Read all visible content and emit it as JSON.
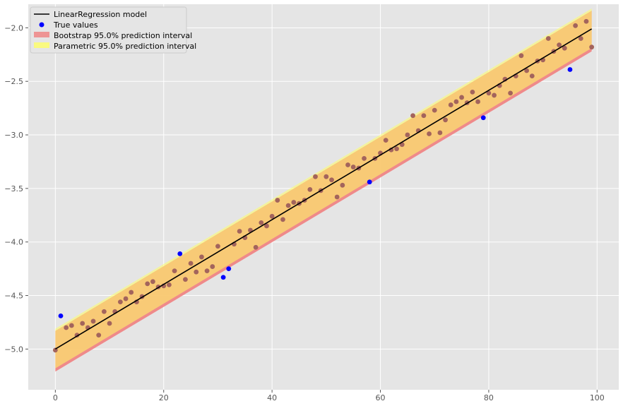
{
  "chart_data": {
    "type": "scatter",
    "style": "ggplot",
    "grid": true,
    "legend_placement": "top-left",
    "xlim": [
      -5,
      104
    ],
    "ylim": [
      -5.38,
      -1.78
    ],
    "xticks": [
      0,
      20,
      40,
      60,
      80,
      100
    ],
    "yticks": [
      -5.0,
      -4.5,
      -4.0,
      -3.5,
      -3.0,
      -2.5,
      -2.0
    ],
    "xtick_labels": [
      "0",
      "20",
      "40",
      "60",
      "80",
      "100"
    ],
    "ytick_labels": [
      "−5.0",
      "−4.5",
      "−4.0",
      "−3.5",
      "−3.0",
      "−2.5",
      "−2.0"
    ],
    "colors": {
      "background": "#e5e5e5",
      "grid": "#ffffff",
      "model_line": "#000000",
      "true_values": "#0000ff",
      "bootstrap_interval": "#f08080",
      "parametric_interval": "#ffff66",
      "overlap": "#f5b84f",
      "overlap_points": "#a3645c"
    },
    "legend": [
      {
        "label": "LinearRegression model",
        "kind": "line",
        "color": "#000000"
      },
      {
        "label": "True values",
        "kind": "marker",
        "color": "#0000ff"
      },
      {
        "label": "Bootstrap 95.0% prediction interval",
        "kind": "patch",
        "color": "#f08080"
      },
      {
        "label": "Parametric 95.0% prediction interval",
        "kind": "patch",
        "color": "#ffff66"
      }
    ],
    "model_line": {
      "x": [
        0,
        99
      ],
      "y": [
        -5.0,
        -2.01
      ]
    },
    "bootstrap_interval": {
      "x": [
        0,
        99
      ],
      "lower": [
        -5.21,
        -2.22
      ],
      "upper": [
        -4.83,
        -1.84
      ]
    },
    "parametric_interval": {
      "x": [
        0,
        99
      ],
      "lower": [
        -5.18,
        -2.19
      ],
      "upper": [
        -4.81,
        -1.82
      ]
    },
    "true_values": {
      "x": [
        0,
        1,
        2,
        3,
        4,
        5,
        6,
        7,
        8,
        9,
        10,
        11,
        12,
        13,
        14,
        15,
        16,
        17,
        18,
        19,
        20,
        21,
        22,
        23,
        24,
        25,
        26,
        27,
        28,
        29,
        30,
        31,
        32,
        33,
        34,
        35,
        36,
        37,
        38,
        39,
        40,
        41,
        42,
        43,
        44,
        45,
        46,
        47,
        48,
        49,
        50,
        51,
        52,
        53,
        54,
        55,
        56,
        57,
        58,
        59,
        60,
        61,
        62,
        63,
        64,
        65,
        66,
        67,
        68,
        69,
        70,
        71,
        72,
        73,
        74,
        75,
        76,
        77,
        78,
        79,
        80,
        81,
        82,
        83,
        84,
        85,
        86,
        87,
        88,
        89,
        90,
        91,
        92,
        93,
        94,
        95,
        96,
        97,
        98,
        99
      ],
      "y": [
        -5.01,
        -4.69,
        -4.8,
        -4.78,
        -4.87,
        -4.76,
        -4.8,
        -4.74,
        -4.87,
        -4.65,
        -4.76,
        -4.65,
        -4.56,
        -4.53,
        -4.47,
        -4.56,
        -4.51,
        -4.39,
        -4.37,
        -4.42,
        -4.41,
        -4.4,
        -4.27,
        -4.11,
        -4.35,
        -4.2,
        -4.28,
        -4.14,
        -4.27,
        -4.23,
        -4.04,
        -4.33,
        -4.25,
        -4.02,
        -3.9,
        -3.96,
        -3.89,
        -4.05,
        -3.82,
        -3.85,
        -3.76,
        -3.61,
        -3.79,
        -3.66,
        -3.63,
        -3.64,
        -3.61,
        -3.51,
        -3.39,
        -3.52,
        -3.39,
        -3.42,
        -3.58,
        -3.47,
        -3.28,
        -3.3,
        -3.31,
        -3.22,
        -3.44,
        -3.22,
        -3.17,
        -3.05,
        -3.14,
        -3.13,
        -3.09,
        -3.0,
        -2.82,
        -2.96,
        -2.82,
        -2.99,
        -2.77,
        -2.98,
        -2.86,
        -2.72,
        -2.69,
        -2.65,
        -2.7,
        -2.6,
        -2.69,
        -2.84,
        -2.61,
        -2.63,
        -2.54,
        -2.48,
        -2.61,
        -2.45,
        -2.26,
        -2.4,
        -2.45,
        -2.31,
        -2.3,
        -2.1,
        -2.22,
        -2.16,
        -2.19,
        -2.39,
        -1.98,
        -2.1,
        -1.94,
        -2.18
      ]
    }
  }
}
